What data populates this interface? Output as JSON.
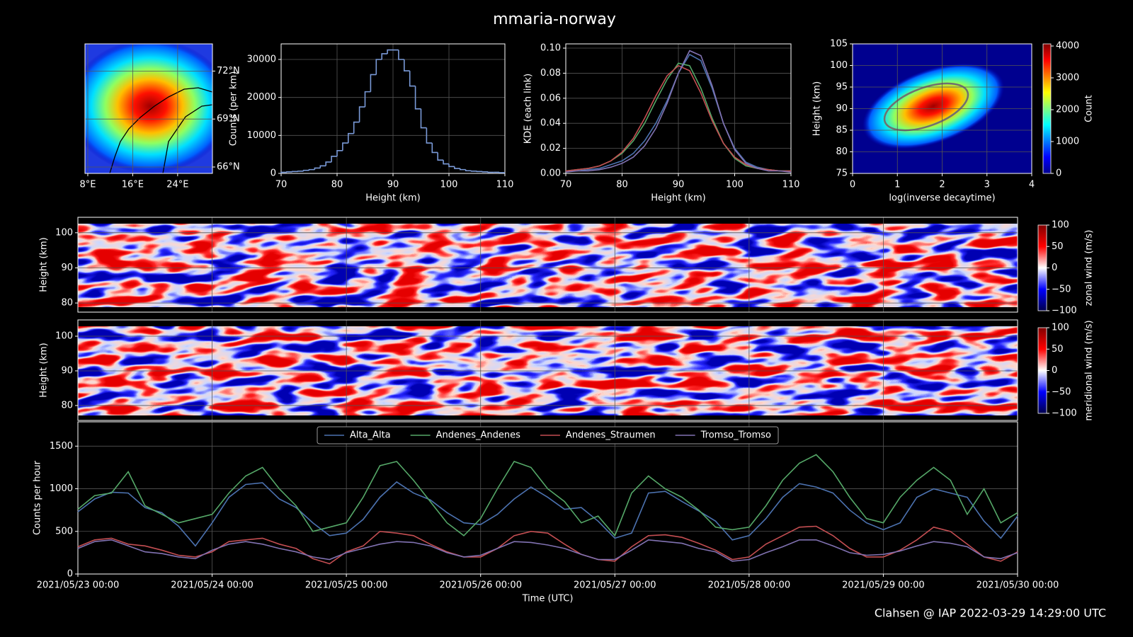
{
  "title": "mmaria-norway",
  "footer": "Clahsen @ IAP 2022-03-29 14:29:00 UTC",
  "chart_data": [
    {
      "type": "map",
      "xlim": [
        7.5,
        30.2
      ],
      "ylim": [
        65.6,
        73.7
      ],
      "grid": true,
      "xticks": [
        {
          "value": 8,
          "label": "8°E"
        },
        {
          "value": 16,
          "label": "16°E"
        },
        {
          "value": 24,
          "label": "24°E"
        }
      ],
      "yticks": [
        {
          "value": 66,
          "label": "66°N"
        },
        {
          "value": 69,
          "label": "69°N"
        },
        {
          "value": 72,
          "label": "72°N"
        }
      ]
    },
    {
      "type": "histogram",
      "xlabel": "Height (km)",
      "ylabel": "Counts (per km)",
      "color": "#7a9ad8",
      "grid": true,
      "xlim": [
        70,
        110
      ],
      "ylim": [
        0,
        34100
      ],
      "xticks": [
        70,
        80,
        90,
        100,
        110
      ],
      "yticks": [
        0,
        10000,
        20000,
        30000
      ],
      "bins": [
        70,
        71,
        72,
        73,
        74,
        75,
        76,
        77,
        78,
        79,
        80,
        81,
        82,
        83,
        84,
        85,
        86,
        87,
        88,
        89,
        90,
        91,
        92,
        93,
        94,
        95,
        96,
        97,
        98,
        99,
        100,
        101,
        102,
        103,
        104,
        105,
        106,
        107,
        108,
        109,
        110
      ],
      "values": [
        300,
        400,
        500,
        600,
        800,
        1000,
        1400,
        2000,
        3000,
        4500,
        6000,
        8000,
        10500,
        13500,
        17500,
        21500,
        26000,
        30000,
        31500,
        32500,
        32500,
        30000,
        27000,
        23000,
        17000,
        12000,
        8000,
        5500,
        3500,
        2500,
        1800,
        1300,
        1000,
        700,
        600,
        500,
        400,
        300,
        300,
        200
      ]
    },
    {
      "type": "line",
      "xlabel": "Height (km)",
      "ylabel": "KDE (each link)",
      "grid": true,
      "xlim": [
        70,
        110
      ],
      "ylim": [
        0,
        0.1034
      ],
      "xticks": [
        70,
        80,
        90,
        100,
        110
      ],
      "yticks": [
        {
          "value": 0,
          "label": "0.00"
        },
        {
          "value": 0.02,
          "label": "0.02"
        },
        {
          "value": 0.04,
          "label": "0.04"
        },
        {
          "value": 0.06,
          "label": "0.06"
        },
        {
          "value": 0.08,
          "label": "0.08"
        },
        {
          "value": 0.1,
          "label": "0.10"
        }
      ],
      "x": [
        70,
        72,
        74,
        76,
        78,
        80,
        82,
        84,
        86,
        88,
        90,
        92,
        94,
        96,
        98,
        100,
        102,
        104,
        106,
        108,
        110
      ],
      "series": [
        {
          "color": "#4c72b0",
          "values": [
            0.002,
            0.002,
            0.003,
            0.004,
            0.007,
            0.01,
            0.016,
            0.026,
            0.04,
            0.058,
            0.08,
            0.095,
            0.09,
            0.068,
            0.04,
            0.02,
            0.009,
            0.005,
            0.003,
            0.002,
            0.002
          ]
        },
        {
          "color": "#55a868",
          "values": [
            0.002,
            0.003,
            0.004,
            0.006,
            0.01,
            0.016,
            0.026,
            0.04,
            0.058,
            0.075,
            0.088,
            0.086,
            0.068,
            0.044,
            0.024,
            0.012,
            0.006,
            0.004,
            0.003,
            0.002,
            0.002
          ]
        },
        {
          "color": "#c44e52",
          "values": [
            0.002,
            0.003,
            0.004,
            0.006,
            0.01,
            0.017,
            0.028,
            0.044,
            0.062,
            0.078,
            0.086,
            0.082,
            0.064,
            0.042,
            0.024,
            0.013,
            0.007,
            0.004,
            0.003,
            0.002,
            0.002
          ]
        },
        {
          "color": "#8172b2",
          "values": [
            0.001,
            0.002,
            0.002,
            0.003,
            0.005,
            0.008,
            0.013,
            0.022,
            0.036,
            0.056,
            0.08,
            0.098,
            0.094,
            0.07,
            0.04,
            0.019,
            0.008,
            0.004,
            0.002,
            0.002,
            0.001
          ]
        }
      ]
    },
    {
      "type": "density",
      "xlabel": "log(inverse decaytime)",
      "ylabel": "Height (km)",
      "grid": true,
      "xlim": [
        0,
        4
      ],
      "ylim": [
        75,
        105
      ],
      "xticks": [
        0,
        1,
        2,
        3,
        4
      ],
      "yticks": [
        75,
        80,
        85,
        90,
        95,
        100,
        105
      ],
      "colorbar": {
        "label": "Count",
        "lim": [
          0,
          4067
        ],
        "ticks": [
          0,
          1000,
          2000,
          3000,
          4000
        ]
      }
    },
    {
      "type": "heatmap",
      "ylabel": "Height (km)",
      "grid": true,
      "ylim": [
        77.4,
        104.4
      ],
      "yticks": [
        80,
        90,
        100
      ],
      "colorbar": {
        "label": "zonal wind (m/s)",
        "lim": [
          -100,
          100
        ],
        "ticks": [
          {
            "value": -100,
            "label": "−100"
          },
          {
            "value": -50,
            "label": "−50"
          },
          0,
          50,
          100
        ]
      }
    },
    {
      "type": "heatmap",
      "ylabel": "Height (km)",
      "grid": true,
      "ylim": [
        75.7,
        104.7
      ],
      "yticks": [
        80,
        90,
        100
      ],
      "colorbar": {
        "label": "meridional wind (m/s)",
        "lim": [
          -100,
          100
        ],
        "ticks": [
          {
            "value": -100,
            "label": "−100"
          },
          {
            "value": -50,
            "label": "−50"
          },
          0,
          50,
          100
        ]
      }
    },
    {
      "type": "line",
      "xlabel": "Time (UTC)",
      "ylabel": "Counts per hour",
      "grid": true,
      "legend": "upper center",
      "xlim": [
        "2021/05/23 00:00",
        "2021/05/30 00:00"
      ],
      "ylim": [
        0,
        1785
      ],
      "xticks": [
        "2021/05/23 00:00",
        "2021/05/24 00:00",
        "2021/05/25 00:00",
        "2021/05/26 00:00",
        "2021/05/27 00:00",
        "2021/05/28 00:00",
        "2021/05/29 00:00",
        "2021/05/30 00:00"
      ],
      "yticks": [
        0,
        500,
        1000,
        1500
      ],
      "x": [
        "2021/05/23 00:00",
        "2021/05/23 03:00",
        "2021/05/23 06:00",
        "2021/05/23 09:00",
        "2021/05/23 12:00",
        "2021/05/23 15:00",
        "2021/05/23 18:00",
        "2021/05/23 21:00",
        "2021/05/24 00:00",
        "2021/05/24 03:00",
        "2021/05/24 06:00",
        "2021/05/24 09:00",
        "2021/05/24 12:00",
        "2021/05/24 15:00",
        "2021/05/24 18:00",
        "2021/05/24 21:00",
        "2021/05/25 00:00",
        "2021/05/25 03:00",
        "2021/05/25 06:00",
        "2021/05/25 09:00",
        "2021/05/25 12:00",
        "2021/05/25 15:00",
        "2021/05/25 18:00",
        "2021/05/25 21:00",
        "2021/05/26 00:00",
        "2021/05/26 03:00",
        "2021/05/26 06:00",
        "2021/05/26 09:00",
        "2021/05/26 12:00",
        "2021/05/26 15:00",
        "2021/05/26 18:00",
        "2021/05/26 21:00",
        "2021/05/27 00:00",
        "2021/05/27 03:00",
        "2021/05/27 06:00",
        "2021/05/27 09:00",
        "2021/05/27 12:00",
        "2021/05/27 15:00",
        "2021/05/27 18:00",
        "2021/05/27 21:00",
        "2021/05/28 00:00",
        "2021/05/28 03:00",
        "2021/05/28 06:00",
        "2021/05/28 09:00",
        "2021/05/28 12:00",
        "2021/05/28 15:00",
        "2021/05/28 18:00",
        "2021/05/28 21:00",
        "2021/05/29 00:00",
        "2021/05/29 03:00",
        "2021/05/29 06:00",
        "2021/05/29 09:00",
        "2021/05/29 12:00",
        "2021/05/29 15:00",
        "2021/05/29 18:00",
        "2021/05/29 21:00",
        "2021/05/30 00:00"
      ],
      "series": [
        {
          "name": "Alta_Alta",
          "color": "#4c72b0",
          "values": [
            730,
            880,
            960,
            950,
            780,
            720,
            560,
            330,
            600,
            900,
            1050,
            1070,
            880,
            780,
            600,
            450,
            480,
            640,
            900,
            1080,
            950,
            870,
            720,
            600,
            580,
            700,
            880,
            1020,
            900,
            760,
            780,
            620,
            420,
            480,
            950,
            970,
            850,
            740,
            620,
            400,
            450,
            650,
            900,
            1060,
            1020,
            950,
            750,
            600,
            520,
            600,
            900,
            1000,
            950,
            900,
            620,
            420,
            680
          ]
        },
        {
          "name": "Andenes_Andenes",
          "color": "#55a868",
          "values": [
            760,
            920,
            950,
            1200,
            800,
            700,
            600,
            650,
            700,
            950,
            1150,
            1250,
            1000,
            800,
            500,
            550,
            600,
            900,
            1270,
            1320,
            1100,
            850,
            600,
            450,
            650,
            1000,
            1320,
            1250,
            1000,
            850,
            600,
            680,
            450,
            950,
            1150,
            1000,
            900,
            750,
            550,
            520,
            550,
            800,
            1100,
            1300,
            1400,
            1200,
            900,
            650,
            600,
            900,
            1100,
            1250,
            1100,
            700,
            1000,
            600,
            720
          ]
        },
        {
          "name": "Andenes_Straumen",
          "color": "#c44e52",
          "values": [
            320,
            400,
            420,
            350,
            330,
            280,
            220,
            200,
            260,
            380,
            400,
            420,
            350,
            300,
            180,
            120,
            260,
            330,
            500,
            480,
            450,
            350,
            260,
            200,
            200,
            300,
            450,
            500,
            480,
            350,
            230,
            170,
            150,
            320,
            450,
            460,
            430,
            360,
            280,
            170,
            200,
            350,
            450,
            550,
            560,
            450,
            300,
            200,
            200,
            280,
            400,
            550,
            500,
            350,
            200,
            150,
            260
          ]
        },
        {
          "name": "Tromso_Tromso",
          "color": "#8172b2",
          "values": [
            300,
            380,
            400,
            330,
            260,
            240,
            200,
            180,
            280,
            350,
            380,
            350,
            300,
            260,
            200,
            170,
            250,
            300,
            350,
            380,
            370,
            330,
            250,
            200,
            220,
            300,
            380,
            370,
            340,
            300,
            230,
            170,
            170,
            280,
            400,
            380,
            360,
            300,
            260,
            150,
            170,
            250,
            320,
            400,
            400,
            330,
            250,
            220,
            230,
            270,
            330,
            380,
            360,
            320,
            200,
            180,
            250
          ]
        }
      ]
    }
  ]
}
